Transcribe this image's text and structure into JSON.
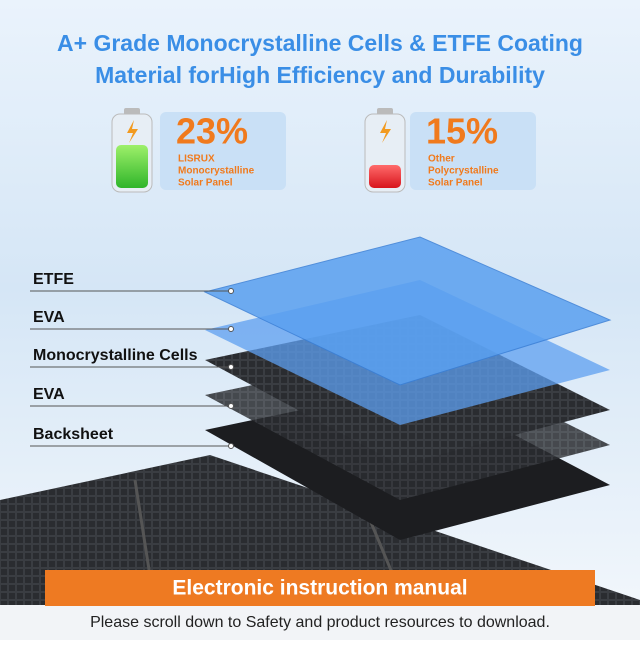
{
  "header": {
    "title_lines": [
      "A+ Grade Monocrystalline Cells & ETFE Coating",
      "Material forHigh Efficiency and Durability"
    ]
  },
  "badges": [
    {
      "value": "23%",
      "lines": [
        "LISRUX",
        "Monocrystalline",
        "Solar Panel"
      ]
    },
    {
      "value": "15%",
      "lines": [
        "Other",
        "Polycrystalline",
        "Solar Panel"
      ]
    }
  ],
  "layers": [
    "ETFE",
    "EVA",
    "Monocrystalline Cells",
    "EVA",
    "Backsheet"
  ],
  "footer": {
    "banner": "Electronic instruction manual",
    "note": "Please scroll down to Safety and product resources to download."
  }
}
